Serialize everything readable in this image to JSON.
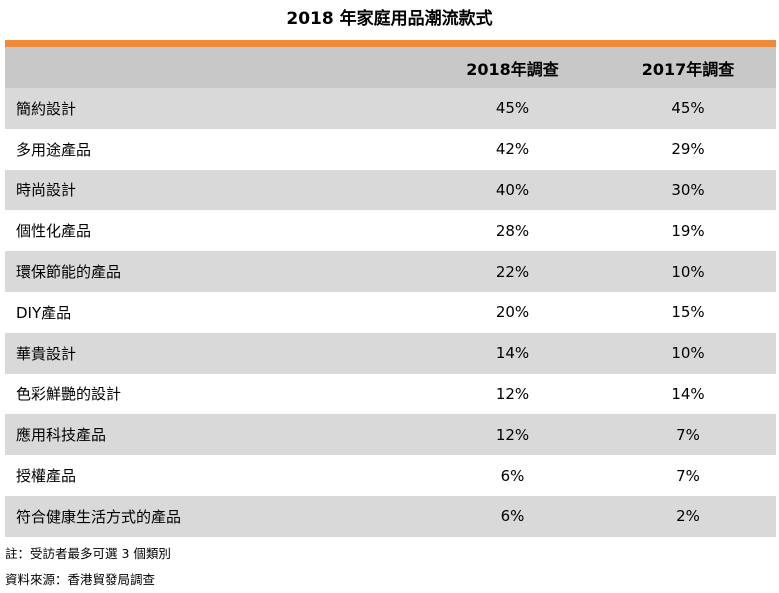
{
  "title": "2018 年家庭用品潮流款式",
  "header": {
    "label": "",
    "col_2018": "2018年調查",
    "col_2017": "2017年調查"
  },
  "rows": [
    {
      "label": "簡約設計",
      "v2018": "45%",
      "v2017": "45%"
    },
    {
      "label": "多用途產品",
      "v2018": "42%",
      "v2017": "29%"
    },
    {
      "label": "時尚設計",
      "v2018": "40%",
      "v2017": "30%"
    },
    {
      "label": "個性化產品",
      "v2018": "28%",
      "v2017": "19%"
    },
    {
      "label": "環保節能的產品",
      "v2018": "22%",
      "v2017": "10%"
    },
    {
      "label": "DIY產品",
      "v2018": "20%",
      "v2017": "15%"
    },
    {
      "label": "華貴設計",
      "v2018": "14%",
      "v2017": "10%"
    },
    {
      "label": "色彩鮮艷的設計",
      "v2018": "12%",
      "v2017": "14%"
    },
    {
      "label": "應用科技產品",
      "v2018": "12%",
      "v2017": "7%"
    },
    {
      "label": "授權產品",
      "v2018": "6%",
      "v2017": "7%"
    },
    {
      "label": "符合健康生活方式的產品",
      "v2018": "6%",
      "v2017": "2%"
    }
  ],
  "notes": {
    "note": "註：受訪者最多可選 3 個類別",
    "source": "資料來源：香港貿發局調查"
  },
  "colors": {
    "accent": "#ef8a3a",
    "header_bg": "#c8c8c8",
    "shaded_bg": "#d9d9d9"
  }
}
